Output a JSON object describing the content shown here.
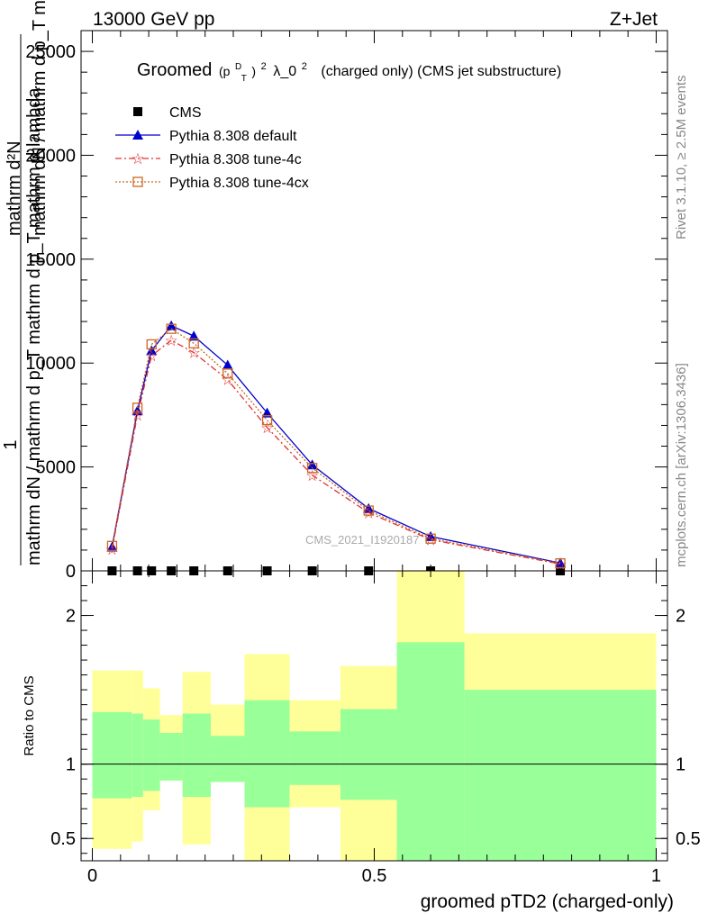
{
  "header": {
    "left": "13000 GeV pp",
    "right": "Z+Jet"
  },
  "title": {
    "prefix": "Groomed",
    "p": "(p",
    "sup_d": "D",
    "sub_t": "T",
    "close": ")",
    "sup_2": "2",
    "lambda": "λ_0",
    "sup_2b": "2",
    "suffix": "(charged only) (CMS jet substructure)"
  },
  "side_labels": {
    "rivet": "Rivet 3.1.10, ≥ 2.5M events",
    "mcplots": "mcplots.cern.ch [arXiv:1306.3436]"
  },
  "watermark": "CMS_2021_I1920187",
  "ylabel_top": {
    "num": "1",
    "den": "mathrm dN / mathrm d p_T mathrm d p_T mathrm d lambda",
    "num2": "mathrm d²N",
    "den2": "mathrm dN / mathrm d p_T mathrm d p_T mathrm d lambda"
  },
  "ylabel_ratio": "Ratio to CMS",
  "xlabel": "groomed pTD2 (charged-only)",
  "colors": {
    "default": "#0000cc",
    "tune4c": "#e03030",
    "tune4cx": "#cc6622",
    "green": "#99ff99",
    "yellow": "#ffff99"
  },
  "chart_data": {
    "type": "line",
    "xlim": [
      -0.02,
      1.02
    ],
    "ylim_main": [
      0,
      26000
    ],
    "ylim_ratio": [
      0.35,
      2.3
    ],
    "main_yticks": [
      0,
      5000,
      10000,
      15000,
      20000,
      25000
    ],
    "main_ytick_labels": [
      "0",
      "5000",
      "10000",
      "15000",
      "20000",
      "25000"
    ],
    "ratio_yticks": [
      0.5,
      1,
      2
    ],
    "ratio_ytick_labels": [
      "0.5",
      "1",
      "2"
    ],
    "xticks": [
      0,
      0.5,
      1
    ],
    "xtick_labels": [
      "0",
      "0.5",
      "1"
    ],
    "x": [
      0.035,
      0.08,
      0.105,
      0.14,
      0.18,
      0.24,
      0.31,
      0.39,
      0.49,
      0.6,
      0.83
    ],
    "cms": [
      0,
      0,
      0,
      0,
      0,
      0,
      0,
      0,
      0,
      0,
      0
    ],
    "series": [
      {
        "name": "CMS",
        "marker": "square",
        "values": [
          0,
          0,
          0,
          0,
          0,
          0,
          0,
          0,
          0,
          0,
          0
        ]
      },
      {
        "name": "Pythia 8.308 default",
        "marker": "triangle",
        "values": [
          1150,
          7700,
          10600,
          11800,
          11300,
          9900,
          7600,
          5100,
          3000,
          1650,
          380
        ]
      },
      {
        "name": "Pythia 8.308 tune-4c",
        "marker": "star",
        "values": [
          1050,
          7500,
          10350,
          11100,
          10500,
          9200,
          6900,
          4600,
          2800,
          1500,
          330
        ]
      },
      {
        "name": "Pythia 8.308 tune-4cx",
        "marker": "open-square",
        "values": [
          1200,
          7850,
          10900,
          11650,
          10950,
          9500,
          7250,
          4950,
          2900,
          1550,
          360
        ]
      }
    ],
    "ratio_bands": [
      {
        "x0": 0.0,
        "x1": 0.07,
        "g_lo": 0.77,
        "g_hi": 1.35,
        "y_lo": 0.43,
        "y_hi": 1.63
      },
      {
        "x0": 0.07,
        "x1": 0.09,
        "g_lo": 0.78,
        "g_hi": 1.34,
        "y_lo": 0.48,
        "y_hi": 1.63
      },
      {
        "x0": 0.09,
        "x1": 0.12,
        "g_lo": 0.82,
        "g_hi": 1.3,
        "y_lo": 0.69,
        "y_hi": 1.51
      },
      {
        "x0": 0.12,
        "x1": 0.16,
        "g_lo": 0.89,
        "g_hi": 1.21,
        "y_lo": 0.89,
        "y_hi": 1.33
      },
      {
        "x0": 0.16,
        "x1": 0.21,
        "g_lo": 0.78,
        "g_hi": 1.34,
        "y_lo": 0.46,
        "y_hi": 1.62
      },
      {
        "x0": 0.21,
        "x1": 0.27,
        "g_lo": 0.88,
        "g_hi": 1.19,
        "y_lo": 0.88,
        "y_hi": 1.4
      },
      {
        "x0": 0.27,
        "x1": 0.35,
        "g_lo": 0.71,
        "g_hi": 1.43,
        "y_lo": 0.35,
        "y_hi": 1.74
      },
      {
        "x0": 0.35,
        "x1": 0.44,
        "g_lo": 0.86,
        "g_hi": 1.22,
        "y_lo": 0.71,
        "y_hi": 1.43
      },
      {
        "x0": 0.44,
        "x1": 0.54,
        "g_lo": 0.76,
        "g_hi": 1.37,
        "y_lo": 0.35,
        "y_hi": 1.66
      },
      {
        "x0": 0.54,
        "x1": 0.66,
        "g_lo": 0.35,
        "g_hi": 1.82,
        "y_lo": 0.35,
        "y_hi": 2.3
      },
      {
        "x0": 0.66,
        "x1": 1.0,
        "g_lo": 0.35,
        "g_hi": 1.5,
        "y_lo": 0.62,
        "y_hi": 1.88
      }
    ]
  }
}
